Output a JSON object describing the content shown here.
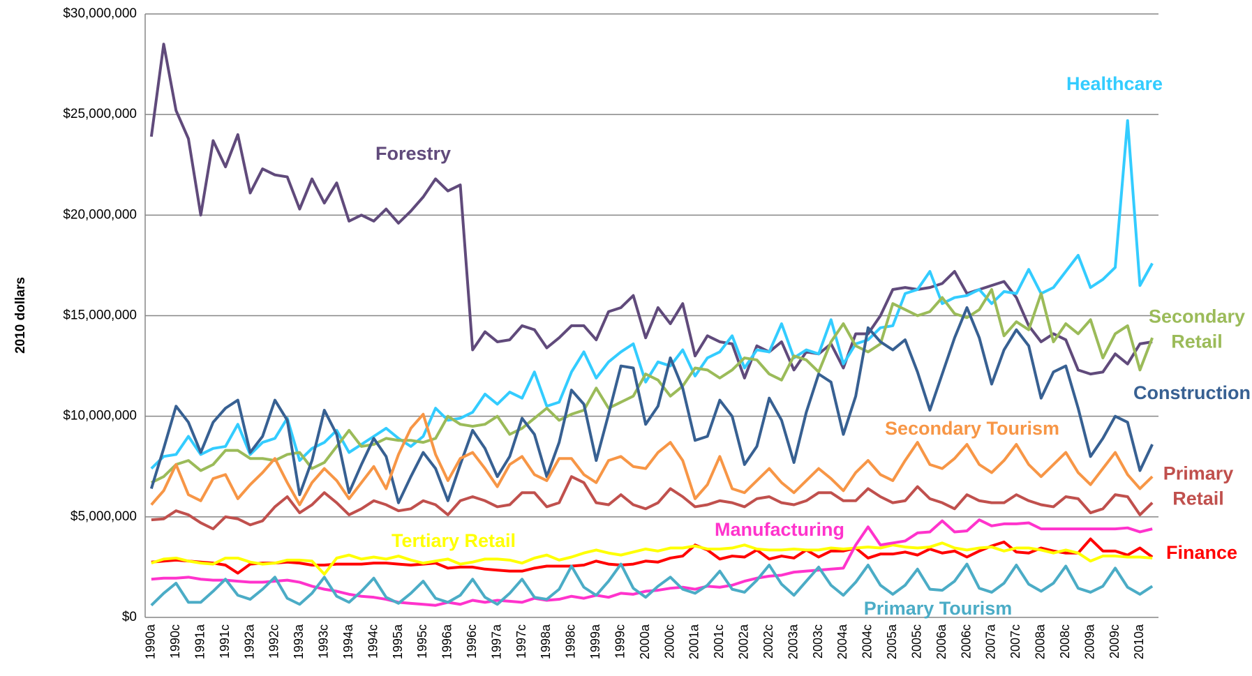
{
  "chart_data": {
    "type": "line",
    "y_label": "2010 dollars",
    "categories": [
      "1990a",
      null,
      "1990c",
      null,
      "1991a",
      null,
      "1991c",
      null,
      "1992a",
      null,
      "1992c",
      null,
      "1993a",
      null,
      "1993c",
      null,
      "1994a",
      null,
      "1994c",
      null,
      "1995a",
      null,
      "1995c",
      null,
      "1996a",
      null,
      "1996c",
      null,
      "1997a",
      null,
      "1997c",
      null,
      "1998a",
      null,
      "1998c",
      null,
      "1999a",
      null,
      "1999c",
      null,
      "2000a",
      null,
      "2000c",
      null,
      "2001a",
      null,
      "2001c",
      null,
      "2002a",
      null,
      "2002c",
      null,
      "2003a",
      null,
      "2003c",
      null,
      "2004a",
      null,
      "2004c",
      null,
      "2005a",
      null,
      "2005c",
      null,
      "2006a",
      null,
      "2006c",
      null,
      "2007a",
      null,
      "2007c",
      null,
      "2008a",
      null,
      "2008c",
      null,
      "2009a",
      null,
      "2009c",
      null,
      "2010a",
      null
    ],
    "ylim": [
      0,
      30000000
    ],
    "yticks": [
      {
        "value": 0,
        "label": "$0"
      },
      {
        "value": 5000000,
        "label": "$5,000,000"
      },
      {
        "value": 10000000,
        "label": "$10,000,000"
      },
      {
        "value": 15000000,
        "label": "$15,000,000"
      },
      {
        "value": 20000000,
        "label": "$20,000,000"
      },
      {
        "value": 25000000,
        "label": "$25,000,000"
      },
      {
        "value": 30000000,
        "label": "$30,000,000"
      }
    ],
    "grid": true,
    "series": [
      {
        "name": "Forestry",
        "color": "#604a7b",
        "values": [
          23900000,
          28500000,
          25200000,
          23800000,
          20000000,
          23700000,
          22400000,
          24000000,
          21100000,
          22300000,
          22000000,
          21900000,
          20300000,
          21800000,
          20600000,
          21600000,
          19700000,
          20000000,
          19700000,
          20300000,
          19600000,
          20200000,
          20900000,
          21800000,
          21200000,
          21500000,
          13300000,
          14200000,
          13700000,
          13800000,
          14500000,
          14300000,
          13400000,
          13900000,
          14500000,
          14500000,
          13800000,
          15200000,
          15400000,
          16000000,
          13900000,
          15400000,
          14600000,
          15600000,
          13000000,
          14000000,
          13700000,
          13600000,
          11900000,
          13500000,
          13200000,
          13700000,
          12300000,
          13200000,
          13100000,
          13600000,
          12400000,
          14100000,
          14100000,
          15000000,
          16300000,
          16400000,
          16300000,
          16400000,
          16600000,
          17200000,
          16100000,
          16300000,
          16500000,
          16700000,
          15900000,
          14500000,
          13700000,
          14100000,
          13800000,
          12300000,
          12100000,
          12200000,
          13100000,
          12600000,
          13600000,
          13700000
        ]
      },
      {
        "name": "Healthcare",
        "color": "#33ccff",
        "values": [
          7400000,
          8000000,
          8100000,
          9000000,
          8100000,
          8400000,
          8500000,
          9600000,
          8100000,
          8700000,
          8900000,
          9900000,
          7800000,
          8400000,
          8700000,
          9300000,
          8200000,
          8600000,
          9000000,
          9400000,
          8900000,
          8500000,
          9000000,
          10400000,
          9800000,
          9900000,
          10200000,
          11100000,
          10600000,
          11200000,
          10900000,
          12200000,
          10500000,
          10700000,
          12200000,
          13200000,
          11900000,
          12700000,
          13200000,
          13600000,
          11700000,
          12700000,
          12500000,
          13300000,
          12000000,
          12900000,
          13200000,
          14000000,
          12400000,
          13300000,
          13200000,
          14600000,
          12900000,
          13300000,
          13100000,
          14800000,
          12600000,
          13600000,
          13800000,
          14400000,
          14500000,
          16100000,
          16300000,
          17200000,
          15600000,
          15900000,
          16000000,
          16300000,
          15600000,
          16200000,
          16100000,
          17300000,
          16100000,
          16400000,
          17200000,
          18000000,
          16400000,
          16800000,
          17400000,
          24700000,
          16500000,
          17600000
        ]
      },
      {
        "name": "Secondary Retail",
        "color": "#9bbb59",
        "values": [
          6700000,
          7000000,
          7600000,
          7800000,
          7300000,
          7600000,
          8300000,
          8300000,
          7900000,
          7900000,
          7800000,
          8100000,
          8200000,
          7400000,
          7700000,
          8500000,
          9300000,
          8500000,
          8600000,
          8900000,
          8800000,
          8800000,
          8700000,
          8900000,
          10000000,
          9600000,
          9500000,
          9600000,
          10000000,
          9100000,
          9400000,
          9900000,
          10400000,
          9800000,
          10100000,
          10300000,
          11400000,
          10400000,
          10700000,
          11000000,
          12100000,
          11800000,
          11000000,
          11500000,
          12400000,
          12300000,
          11900000,
          12300000,
          12900000,
          12800000,
          12100000,
          11800000,
          13000000,
          12800000,
          12200000,
          13700000,
          14600000,
          13500000,
          13200000,
          13600000,
          15600000,
          15300000,
          15000000,
          15200000,
          15900000,
          15100000,
          14900000,
          15300000,
          16300000,
          14000000,
          14700000,
          14300000,
          16100000,
          13700000,
          14600000,
          14100000,
          14800000,
          12900000,
          14100000,
          14500000,
          12300000,
          13900000
        ]
      },
      {
        "name": "Construction",
        "color": "#376092",
        "values": [
          6400000,
          8400000,
          10500000,
          9700000,
          8200000,
          9700000,
          10400000,
          10800000,
          8200000,
          9000000,
          10800000,
          9800000,
          6100000,
          7800000,
          10300000,
          9100000,
          6200000,
          7600000,
          8900000,
          8000000,
          5700000,
          7000000,
          8200000,
          7400000,
          5800000,
          7600000,
          9300000,
          8400000,
          7000000,
          8000000,
          9900000,
          9100000,
          7000000,
          8700000,
          11300000,
          10600000,
          7800000,
          10100000,
          12500000,
          12400000,
          9600000,
          10500000,
          12900000,
          11400000,
          8800000,
          9000000,
          10800000,
          10000000,
          7600000,
          8500000,
          10900000,
          9800000,
          7700000,
          10200000,
          12100000,
          11700000,
          9100000,
          11000000,
          14400000,
          13700000,
          13300000,
          13800000,
          12200000,
          10300000,
          12100000,
          13900000,
          15400000,
          13900000,
          11600000,
          13300000,
          14300000,
          13500000,
          10900000,
          12200000,
          12500000,
          10400000,
          8000000,
          8900000,
          10000000,
          9700000,
          7300000,
          8600000
        ]
      },
      {
        "name": "Secondary Tourism",
        "color": "#f79646",
        "values": [
          5600000,
          6300000,
          7600000,
          6100000,
          5800000,
          6900000,
          7100000,
          5900000,
          6600000,
          7200000,
          7900000,
          6700000,
          5600000,
          6700000,
          7400000,
          6800000,
          5900000,
          6700000,
          7500000,
          6400000,
          8100000,
          9400000,
          10100000,
          8100000,
          6800000,
          7900000,
          8200000,
          7400000,
          6500000,
          7600000,
          8000000,
          7100000,
          6800000,
          7900000,
          7900000,
          7100000,
          6700000,
          7800000,
          8000000,
          7500000,
          7400000,
          8200000,
          8700000,
          7800000,
          5900000,
          6600000,
          8000000,
          6400000,
          6200000,
          6800000,
          7400000,
          6700000,
          6200000,
          6800000,
          7400000,
          6900000,
          6300000,
          7200000,
          7800000,
          7100000,
          6800000,
          7800000,
          8700000,
          7600000,
          7400000,
          7900000,
          8600000,
          7600000,
          7200000,
          7800000,
          8600000,
          7600000,
          7000000,
          7600000,
          8200000,
          7200000,
          6600000,
          7400000,
          8200000,
          7100000,
          6400000,
          7000000
        ]
      },
      {
        "name": "Primary Retail",
        "color": "#c0504d",
        "values": [
          4850000,
          4900000,
          5300000,
          5100000,
          4700000,
          4400000,
          5000000,
          4900000,
          4600000,
          4800000,
          5500000,
          6000000,
          5200000,
          5600000,
          6200000,
          5700000,
          5100000,
          5400000,
          5800000,
          5600000,
          5300000,
          5400000,
          5800000,
          5600000,
          5100000,
          5800000,
          6000000,
          5800000,
          5500000,
          5600000,
          6200000,
          6200000,
          5500000,
          5700000,
          7000000,
          6700000,
          5700000,
          5600000,
          6100000,
          5600000,
          5400000,
          5700000,
          6400000,
          6000000,
          5500000,
          5600000,
          5800000,
          5700000,
          5500000,
          5900000,
          6000000,
          5700000,
          5600000,
          5800000,
          6200000,
          6200000,
          5800000,
          5800000,
          6400000,
          6000000,
          5700000,
          5800000,
          6500000,
          5900000,
          5700000,
          5400000,
          6100000,
          5800000,
          5700000,
          5700000,
          6100000,
          5800000,
          5600000,
          5500000,
          6000000,
          5900000,
          5200000,
          5400000,
          6100000,
          6000000,
          5100000,
          5700000
        ]
      },
      {
        "name": "Finance",
        "color": "#ff0000",
        "values": [
          2750000,
          2800000,
          2850000,
          2800000,
          2750000,
          2700000,
          2600000,
          2200000,
          2650000,
          2700000,
          2700000,
          2750000,
          2700000,
          2600000,
          2600000,
          2650000,
          2650000,
          2650000,
          2700000,
          2700000,
          2650000,
          2600000,
          2650000,
          2700000,
          2450000,
          2500000,
          2500000,
          2400000,
          2350000,
          2300000,
          2300000,
          2450000,
          2550000,
          2550000,
          2550000,
          2600000,
          2800000,
          2650000,
          2600000,
          2650000,
          2800000,
          2750000,
          2950000,
          3050000,
          3600000,
          3350000,
          2900000,
          3050000,
          3000000,
          3350000,
          2900000,
          3050000,
          2950000,
          3350000,
          3000000,
          3300000,
          3300000,
          3450000,
          2950000,
          3150000,
          3150000,
          3250000,
          3100000,
          3400000,
          3200000,
          3300000,
          3000000,
          3300000,
          3550000,
          3750000,
          3250000,
          3200000,
          3450000,
          3300000,
          3200000,
          3200000,
          3900000,
          3300000,
          3300000,
          3100000,
          3450000,
          3000000
        ]
      },
      {
        "name": "Tertiary Retail",
        "color": "#ffff00",
        "values": [
          2700000,
          2900000,
          2950000,
          2800000,
          2700000,
          2650000,
          2950000,
          2950000,
          2750000,
          2650000,
          2700000,
          2850000,
          2850000,
          2800000,
          2150000,
          2950000,
          3100000,
          2900000,
          3000000,
          2900000,
          3050000,
          2850000,
          2700000,
          2800000,
          2900000,
          2650000,
          2750000,
          2900000,
          2900000,
          2850000,
          2700000,
          2950000,
          3100000,
          2850000,
          3000000,
          3200000,
          3350000,
          3200000,
          3100000,
          3250000,
          3400000,
          3300000,
          3450000,
          3450000,
          3550000,
          3400000,
          3400000,
          3450000,
          3600000,
          3400000,
          3350000,
          3350000,
          3400000,
          3350000,
          3350000,
          3450000,
          3400000,
          3450000,
          3500000,
          3450000,
          3600000,
          3500000,
          3450000,
          3500000,
          3700000,
          3450000,
          3350000,
          3450000,
          3500000,
          3300000,
          3450000,
          3450000,
          3350000,
          3200000,
          3350000,
          3200000,
          2800000,
          3050000,
          3050000,
          3000000,
          3000000,
          2950000
        ]
      },
      {
        "name": "Manufacturing",
        "color": "#ff33cc",
        "values": [
          1900000,
          1950000,
          1950000,
          2000000,
          1900000,
          1850000,
          1850000,
          1800000,
          1750000,
          1750000,
          1800000,
          1850000,
          1750000,
          1550000,
          1400000,
          1300000,
          1150000,
          1050000,
          1000000,
          900000,
          750000,
          700000,
          650000,
          600000,
          750000,
          650000,
          850000,
          750000,
          850000,
          800000,
          750000,
          950000,
          850000,
          900000,
          1050000,
          950000,
          1100000,
          1000000,
          1200000,
          1150000,
          1300000,
          1350000,
          1450000,
          1500000,
          1400000,
          1550000,
          1500000,
          1600000,
          1800000,
          1950000,
          2050000,
          2100000,
          2250000,
          2300000,
          2350000,
          2400000,
          2450000,
          3600000,
          4500000,
          3600000,
          3700000,
          3800000,
          4200000,
          4250000,
          4800000,
          4250000,
          4300000,
          4850000,
          4550000,
          4650000,
          4650000,
          4700000,
          4400000,
          4400000,
          4400000,
          4400000,
          4400000,
          4400000,
          4400000,
          4450000,
          4250000,
          4400000
        ]
      },
      {
        "name": "Primary Tourism",
        "color": "#4bacc6",
        "values": [
          600000,
          1200000,
          1700000,
          750000,
          750000,
          1300000,
          1900000,
          1100000,
          900000,
          1400000,
          2000000,
          950000,
          650000,
          1200000,
          2000000,
          1050000,
          750000,
          1300000,
          1950000,
          1000000,
          700000,
          1200000,
          1800000,
          950000,
          750000,
          1100000,
          1900000,
          1000000,
          650000,
          1200000,
          1900000,
          1000000,
          900000,
          1400000,
          2550000,
          1500000,
          1100000,
          1800000,
          2650000,
          1450000,
          1000000,
          1550000,
          2000000,
          1400000,
          1200000,
          1600000,
          2300000,
          1400000,
          1250000,
          1850000,
          2600000,
          1650000,
          1100000,
          1800000,
          2500000,
          1600000,
          1100000,
          1750000,
          2600000,
          1600000,
          1150000,
          1600000,
          2400000,
          1400000,
          1350000,
          1800000,
          2650000,
          1450000,
          1250000,
          1700000,
          2600000,
          1650000,
          1300000,
          1700000,
          2550000,
          1450000,
          1250000,
          1550000,
          2450000,
          1500000,
          1150000,
          1550000
        ]
      }
    ]
  }
}
